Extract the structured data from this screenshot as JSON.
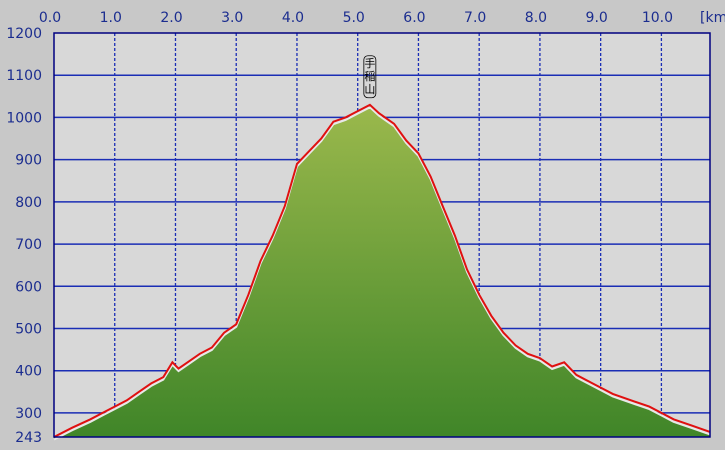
{
  "chart_data": {
    "type": "area",
    "title": "",
    "xlabel": "",
    "ylabel": "",
    "x_unit_label": "[km",
    "xlim": [
      0.0,
      10.8
    ],
    "ylim": [
      243,
      1200
    ],
    "x_ticks": [
      "0.0",
      "1.0",
      "2.0",
      "3.0",
      "4.0",
      "5.0",
      "6.0",
      "7.0",
      "8.0",
      "9.0",
      "10.0"
    ],
    "y_ticks": [
      "1200",
      "1100",
      "1000",
      "900",
      "800",
      "700",
      "600",
      "500",
      "400",
      "300",
      "243"
    ],
    "grid": true,
    "colors": {
      "background": "#c8c8c8",
      "plot_background": "#d8d8d8",
      "grid": "#1a2db5",
      "frame": "#000080",
      "tick_text": "#1b2d8f",
      "fill_top": "#9ab84c",
      "fill_bottom": "#3f8528",
      "profile_line": "#e01010"
    },
    "annotations": [
      {
        "text": "手稲山",
        "x": 5.2,
        "y": 1030
      }
    ],
    "series": [
      {
        "x": [
          0.0,
          0.3,
          0.6,
          0.8,
          1.0,
          1.2,
          1.4,
          1.6,
          1.8,
          1.95,
          2.05,
          2.2,
          2.4,
          2.6,
          2.8,
          3.0,
          3.2,
          3.4,
          3.6,
          3.8,
          4.0,
          4.2,
          4.4,
          4.6,
          4.8,
          5.0,
          5.2,
          5.35,
          5.6,
          5.8,
          6.0,
          6.2,
          6.4,
          6.6,
          6.8,
          7.0,
          7.2,
          7.4,
          7.6,
          7.8,
          8.0,
          8.2,
          8.4,
          8.6,
          8.8,
          9.0,
          9.2,
          9.5,
          9.8,
          10.0,
          10.2,
          10.5,
          10.8
        ],
        "y": [
          243,
          265,
          285,
          300,
          315,
          330,
          350,
          370,
          385,
          420,
          405,
          420,
          440,
          455,
          490,
          510,
          580,
          660,
          720,
          790,
          890,
          920,
          950,
          990,
          1000,
          1015,
          1030,
          1010,
          985,
          945,
          915,
          860,
          790,
          720,
          640,
          580,
          530,
          490,
          460,
          440,
          430,
          410,
          420,
          390,
          375,
          360,
          345,
          330,
          315,
          300,
          285,
          270,
          255
        ]
      }
    ]
  }
}
